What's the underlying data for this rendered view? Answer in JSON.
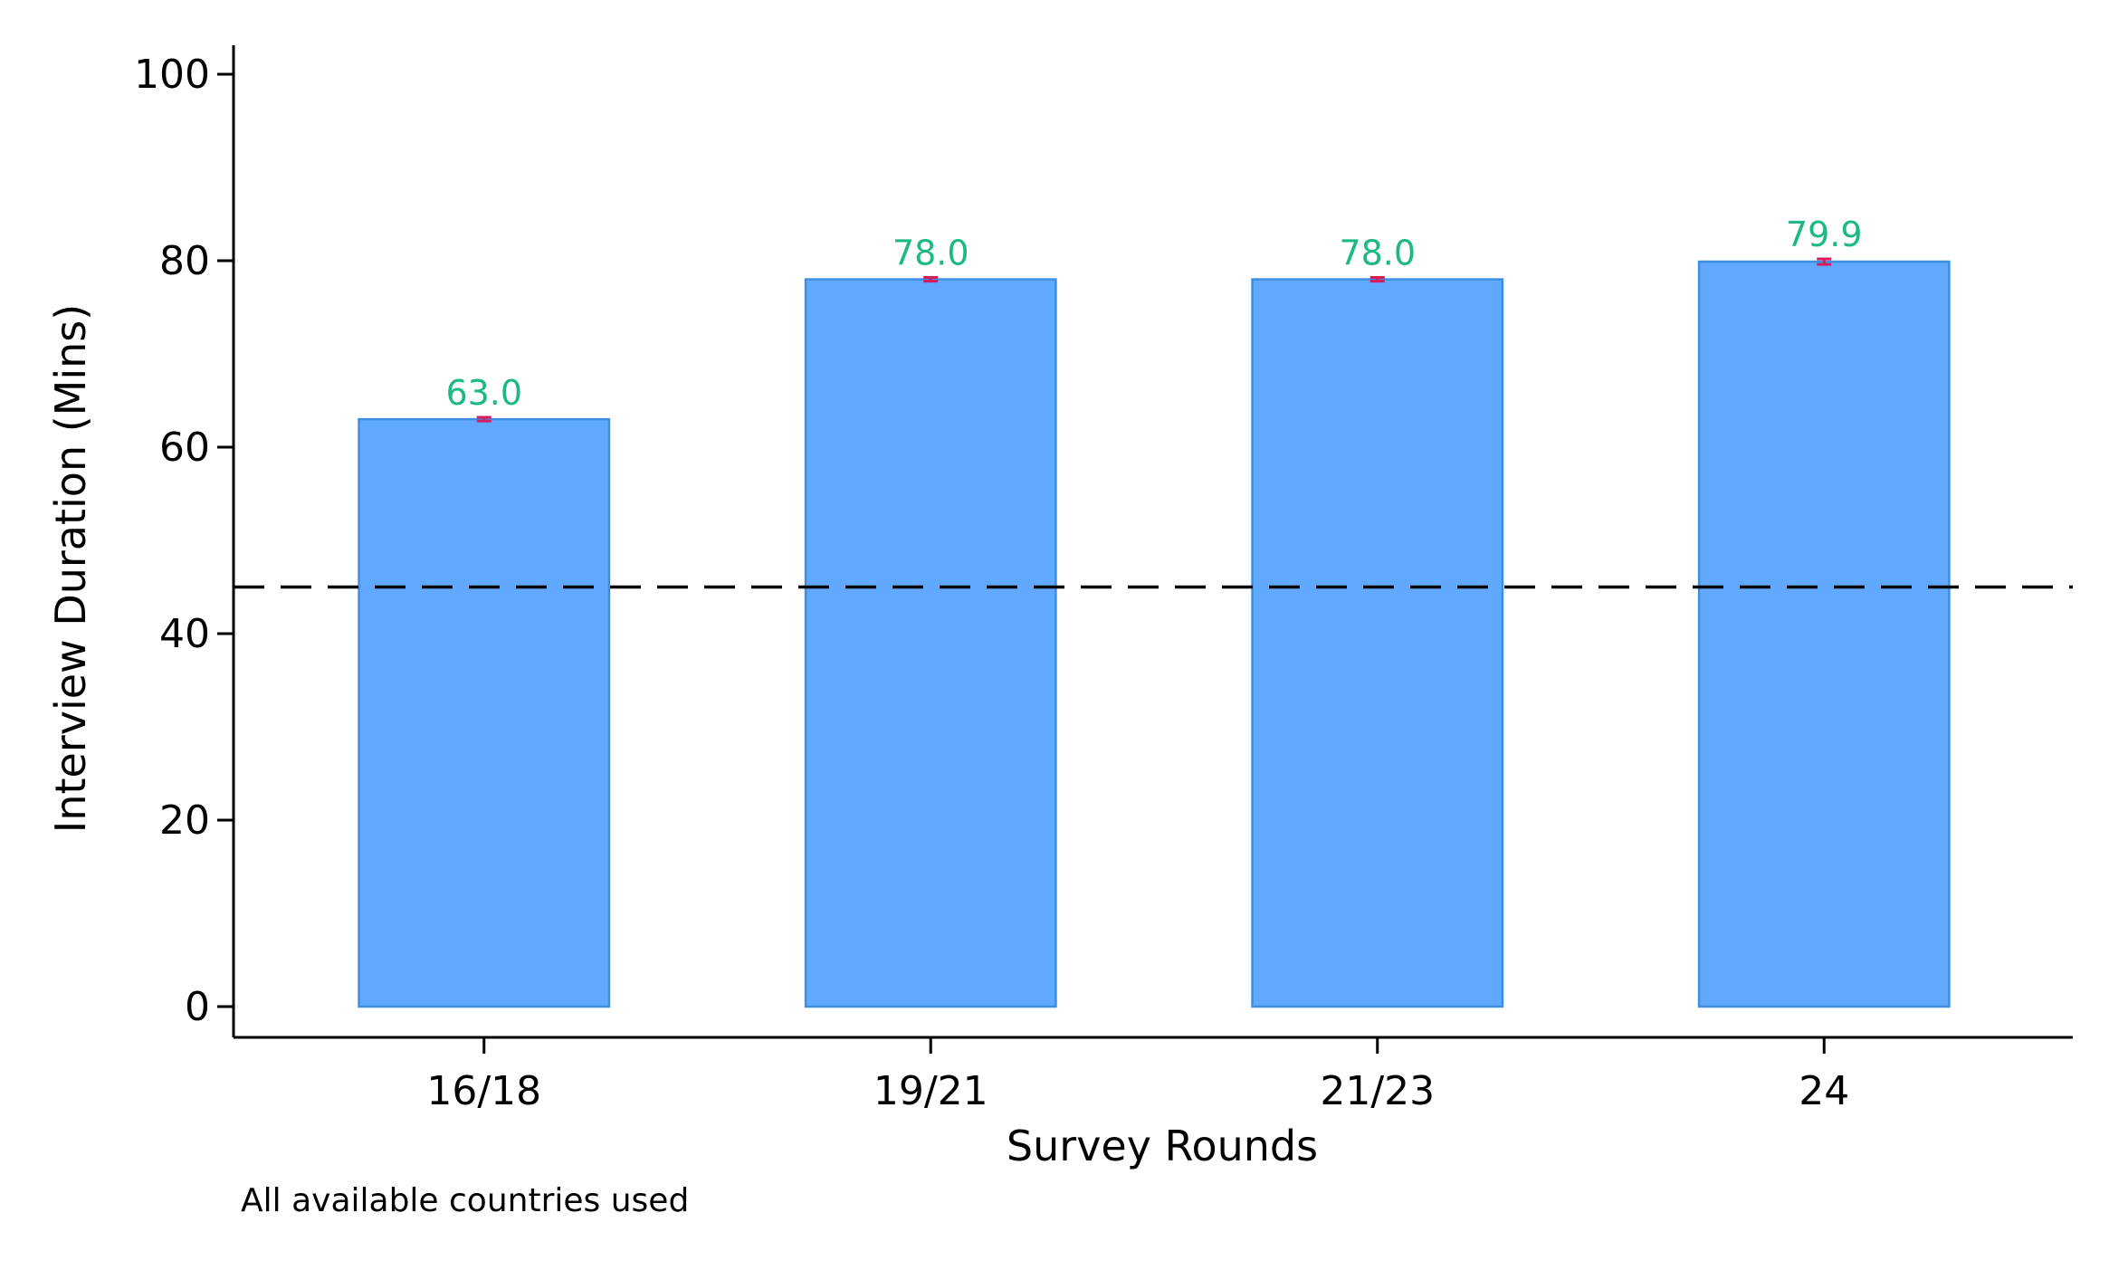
{
  "chart_data": {
    "type": "bar",
    "categories": [
      "16/18",
      "19/21",
      "21/23",
      "24"
    ],
    "values": [
      63.0,
      78.0,
      78.0,
      79.9
    ],
    "value_labels": [
      "63.0",
      "78.0",
      "78.0",
      "79.9"
    ],
    "error_low": [
      62.8,
      77.8,
      77.8,
      79.6
    ],
    "error_high": [
      63.2,
      78.2,
      78.2,
      80.2
    ],
    "xlabel": "Survey Rounds",
    "ylabel": "Interview Duration (Mins)",
    "ylim": [
      0,
      100
    ],
    "yticks": [
      "0",
      "20",
      "40",
      "60",
      "80",
      "100"
    ],
    "reference_line": 45,
    "note": "All available countries used",
    "colors": {
      "bar_fill": "#61a9ff",
      "bar_stroke": "#3d8ee0",
      "data_label": "#1db983",
      "error_bar": "#d61c5c",
      "reference_line": "#000000",
      "axis": "#000000"
    },
    "grid": false
  }
}
